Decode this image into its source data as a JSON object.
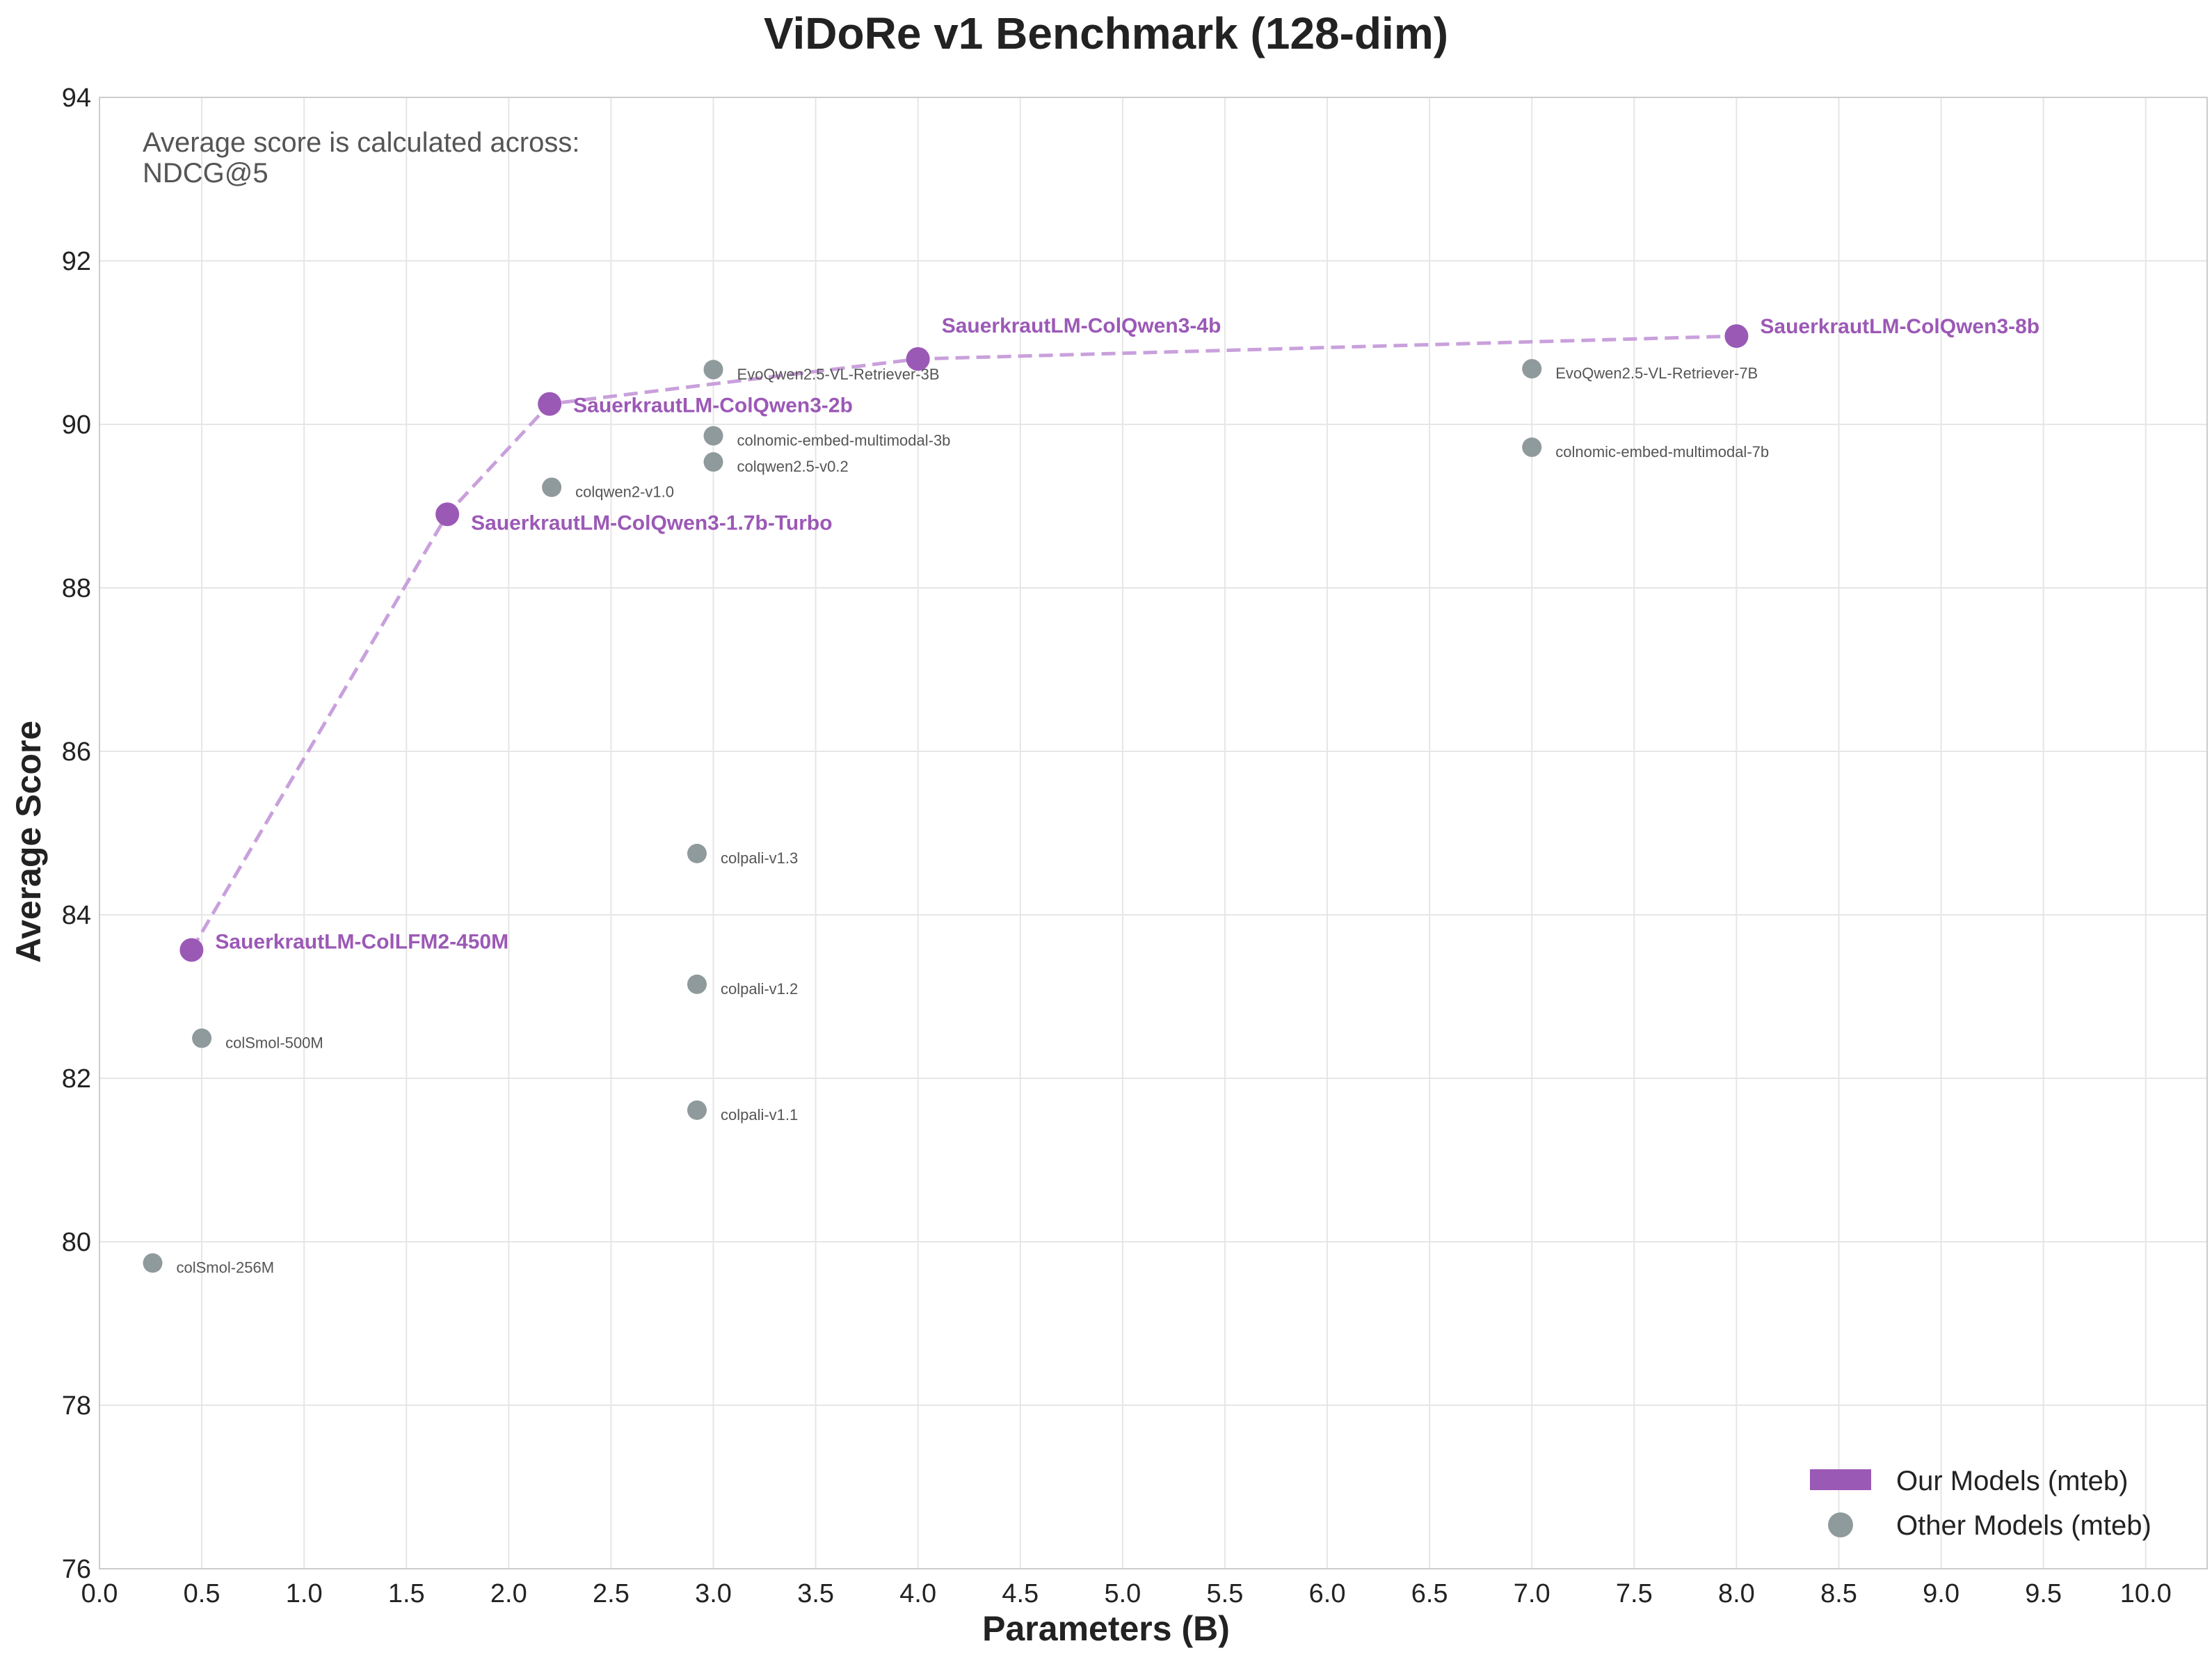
{
  "chart_data": {
    "type": "scatter",
    "title": "ViDoRe v1 Benchmark (128-dim)",
    "xlabel": "Parameters (B)",
    "ylabel": "Average Score",
    "xlim": [
      0,
      10.3
    ],
    "ylim": [
      76,
      94
    ],
    "xticks": [
      0.0,
      0.5,
      1.0,
      1.5,
      2.0,
      2.5,
      3.0,
      3.5,
      4.0,
      4.5,
      5.0,
      5.5,
      6.0,
      6.5,
      7.0,
      7.5,
      8.0,
      8.5,
      9.0,
      9.5,
      10.0
    ],
    "xtick_labels": [
      "0.0",
      "0.5",
      "1.0",
      "1.5",
      "2.0",
      "2.5",
      "3.0",
      "3.5",
      "4.0",
      "4.5",
      "5.0",
      "5.5",
      "6.0",
      "6.5",
      "7.0",
      "7.5",
      "8.0",
      "8.5",
      "9.0",
      "9.5",
      "10.0"
    ],
    "yticks": [
      76,
      78,
      80,
      82,
      84,
      86,
      88,
      90,
      92,
      94
    ],
    "ytick_labels": [
      "76",
      "78",
      "80",
      "82",
      "84",
      "86",
      "88",
      "90",
      "92",
      "94"
    ],
    "grid": true,
    "annotation_lines": [
      "Average score is calculated across:",
      "NDCG@5"
    ],
    "legend_position": "bottom-right",
    "series": [
      {
        "name": "Our Models (mteb)",
        "color": "#9b59b6",
        "line_color": "#c9a0dc",
        "connected": true,
        "points": [
          {
            "label": "SauerkrautLM-ColLFM2-450M",
            "x": 0.45,
            "y": 83.57
          },
          {
            "label": "SauerkrautLM-ColQwen3-1.7b-Turbo",
            "x": 1.7,
            "y": 88.9
          },
          {
            "label": "SauerkrautLM-ColQwen3-2b",
            "x": 2.2,
            "y": 90.25
          },
          {
            "label": "SauerkrautLM-ColQwen3-4b",
            "x": 4.0,
            "y": 90.8
          },
          {
            "label": "SauerkrautLM-ColQwen3-8b",
            "x": 8.0,
            "y": 91.08
          }
        ]
      },
      {
        "name": "Other Models (mteb)",
        "color": "#8f9a9c",
        "connected": false,
        "points": [
          {
            "label": "colSmol-256M",
            "x": 0.26,
            "y": 79.74
          },
          {
            "label": "colSmol-500M",
            "x": 0.5,
            "y": 82.49
          },
          {
            "label": "colqwen2-v1.0",
            "x": 2.21,
            "y": 89.23
          },
          {
            "label": "colpali-v1.3",
            "x": 2.92,
            "y": 84.75
          },
          {
            "label": "colpali-v1.2",
            "x": 2.92,
            "y": 83.15
          },
          {
            "label": "colpali-v1.1",
            "x": 2.92,
            "y": 81.61
          },
          {
            "label": "EvoQwen2.5-VL-Retriever-3B",
            "x": 3.0,
            "y": 90.67
          },
          {
            "label": "colnomic-embed-multimodal-3b",
            "x": 3.0,
            "y": 89.86
          },
          {
            "label": "colqwen2.5-v0.2",
            "x": 3.0,
            "y": 89.54
          },
          {
            "label": "EvoQwen2.5-VL-Retriever-7B",
            "x": 7.0,
            "y": 90.68
          },
          {
            "label": "colnomic-embed-multimodal-7b",
            "x": 7.0,
            "y": 89.72
          }
        ]
      }
    ]
  }
}
